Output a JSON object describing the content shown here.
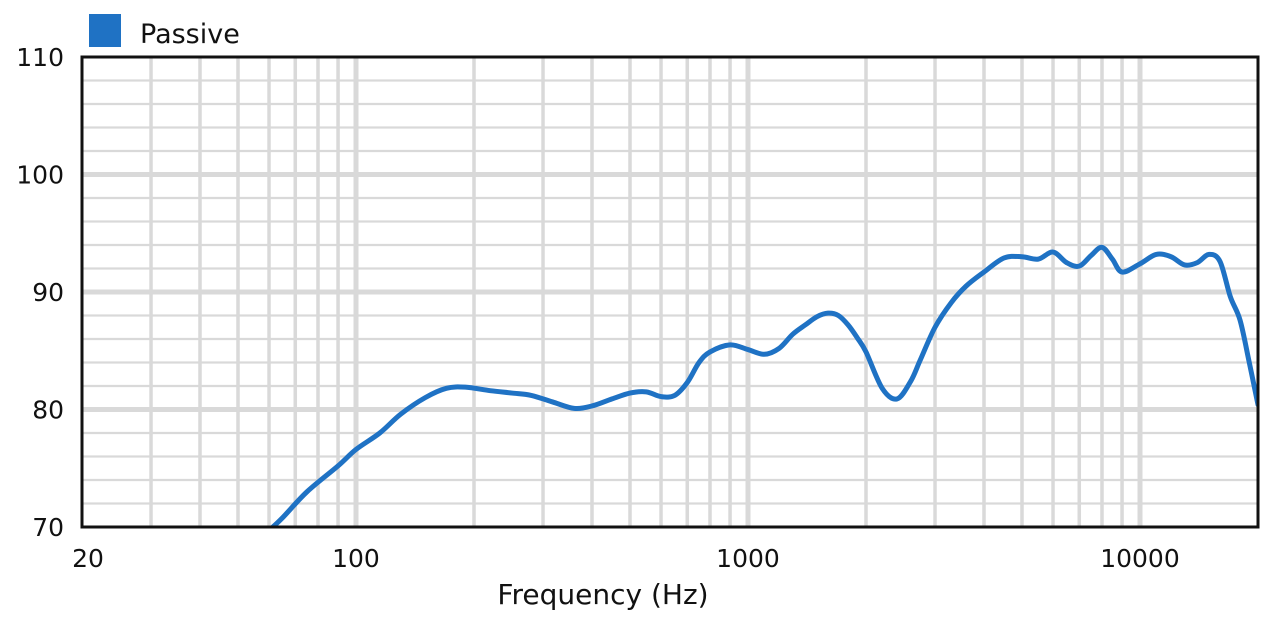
{
  "chart_data": {
    "type": "line",
    "xlabel": "Frequency (Hz)",
    "ylabel": "",
    "x_scale": "log",
    "xlim": [
      20,
      20000
    ],
    "ylim": [
      70,
      110
    ],
    "x_tick_labels": [
      "20",
      "100",
      "1000",
      "10000"
    ],
    "x_tick_values": [
      20,
      100,
      1000,
      10000
    ],
    "y_tick_labels": [
      "110",
      "100",
      "90",
      "80",
      "70"
    ],
    "y_tick_values": [
      110,
      100,
      90,
      80,
      70
    ],
    "grid": true,
    "legend_position": "top-left",
    "series": [
      {
        "name": "Passive",
        "color": "#1F72C4",
        "x": [
          60,
          65,
          75,
          90,
          100,
          115,
          130,
          150,
          170,
          190,
          220,
          250,
          280,
          320,
          360,
          400,
          450,
          500,
          550,
          600,
          650,
          700,
          750,
          800,
          900,
          1000,
          1100,
          1200,
          1300,
          1400,
          1500,
          1600,
          1700,
          1800,
          1900,
          2000,
          2200,
          2400,
          2600,
          2750,
          3000,
          3300,
          3600,
          4000,
          4500,
          5000,
          5500,
          6000,
          6500,
          7000,
          7500,
          8000,
          8500,
          9000,
          10000,
          11000,
          12000,
          13000,
          14000,
          15000,
          16000,
          17000,
          18000,
          19000,
          20000
        ],
        "y": [
          69.7,
          70.8,
          73.0,
          75.2,
          76.6,
          78.0,
          79.6,
          81.0,
          81.8,
          81.9,
          81.6,
          81.4,
          81.2,
          80.6,
          80.1,
          80.3,
          80.9,
          81.4,
          81.5,
          81.1,
          81.2,
          82.3,
          84.0,
          84.9,
          85.5,
          85.1,
          84.7,
          85.2,
          86.4,
          87.2,
          87.9,
          88.2,
          88.0,
          87.2,
          86.1,
          84.9,
          81.8,
          80.9,
          82.4,
          84.2,
          87.0,
          89.1,
          90.5,
          91.7,
          92.9,
          93.0,
          92.8,
          93.4,
          92.5,
          92.2,
          93.1,
          93.8,
          92.8,
          91.7,
          92.4,
          93.2,
          93.0,
          92.3,
          92.5,
          93.2,
          92.6,
          89.6,
          87.6,
          84.0,
          80.4
        ]
      }
    ]
  }
}
